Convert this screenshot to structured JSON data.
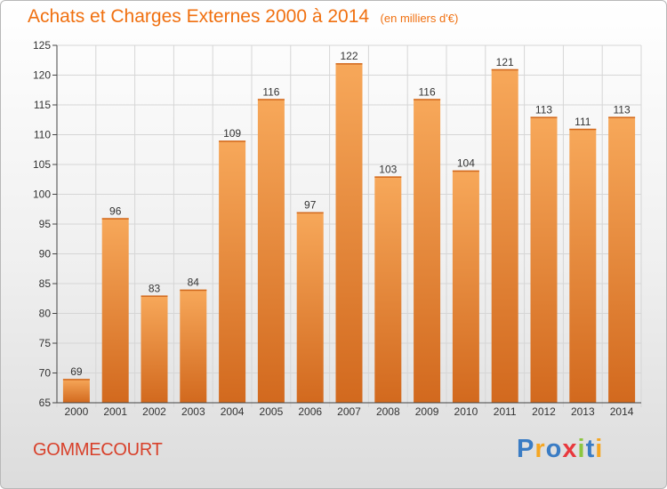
{
  "title": "Achats et Charges Externes 2000 à 2014",
  "unit": "(en milliers d'€)",
  "location": "GOMMECOURT",
  "logo": {
    "letters": [
      {
        "char": "P",
        "color": "#3a7cc4"
      },
      {
        "char": "r",
        "color": "#f5a623"
      },
      {
        "char": "o",
        "color": "#3a7cc4"
      },
      {
        "char": "x",
        "color": "#e8383d"
      },
      {
        "char": "i",
        "color": "#8cc63f"
      },
      {
        "char": "t",
        "color": "#3a7cc4"
      },
      {
        "char": "i",
        "color": "#f5a623"
      }
    ]
  },
  "colors": {
    "bar_light": "#f7a85a",
    "bar_dark": "#d2691e",
    "grid": "#d6d6d6",
    "axis": "#444444",
    "label": "#333333"
  },
  "chart_data": {
    "type": "bar",
    "categories": [
      "2000",
      "2001",
      "2002",
      "2003",
      "2004",
      "2005",
      "2006",
      "2007",
      "2008",
      "2009",
      "2010",
      "2011",
      "2012",
      "2013",
      "2014"
    ],
    "values": [
      69,
      96,
      83,
      84,
      109,
      116,
      97,
      122,
      103,
      116,
      104,
      121,
      113,
      111,
      113
    ],
    "ylim": [
      65,
      125
    ],
    "yticks": [
      65,
      70,
      75,
      80,
      85,
      90,
      95,
      100,
      105,
      110,
      115,
      120,
      125
    ],
    "grid": true,
    "data_labels": true
  }
}
